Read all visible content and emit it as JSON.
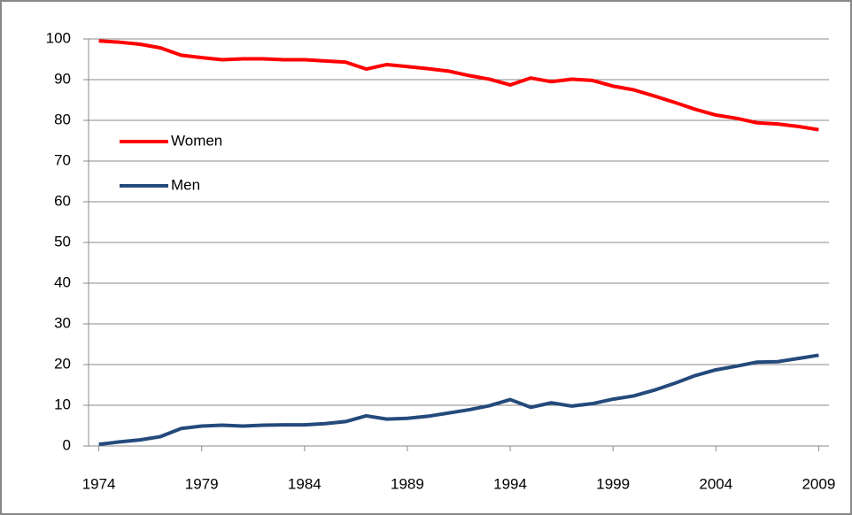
{
  "chart_data": {
    "type": "line",
    "x": [
      1974,
      1975,
      1976,
      1977,
      1978,
      1979,
      1980,
      1981,
      1982,
      1983,
      1984,
      1985,
      1986,
      1987,
      1988,
      1989,
      1990,
      1991,
      1992,
      1993,
      1994,
      1995,
      1996,
      1997,
      1998,
      1999,
      2000,
      2001,
      2002,
      2003,
      2004,
      2005,
      2006,
      2007,
      2008,
      2009
    ],
    "series": [
      {
        "name": "Women",
        "color": "#ff0000",
        "values": [
          99.5,
          99.2,
          98.7,
          97.8,
          96,
          95.4,
          94.9,
          95.1,
          95.1,
          94.9,
          94.9,
          94.6,
          94.3,
          92.6,
          93.7,
          93.2,
          92.7,
          92.1,
          91,
          90.1,
          88.7,
          90.4,
          89.5,
          90.1,
          89.8,
          88.4,
          87.5,
          86,
          84.4,
          82.7,
          81.3,
          80.5,
          79.4,
          79.1,
          78.5,
          77.7
        ]
      },
      {
        "name": "Men",
        "color": "#244a7c",
        "values": [
          0.4,
          1,
          1.5,
          2.3,
          4.3,
          4.9,
          5.1,
          4.9,
          5.1,
          5.2,
          5.2,
          5.5,
          6,
          7.4,
          6.6,
          6.8,
          7.3,
          8.1,
          8.9,
          9.9,
          11.4,
          9.5,
          10.6,
          9.8,
          10.4,
          11.5,
          12.3,
          13.7,
          15.4,
          17.3,
          18.7,
          19.6,
          20.6,
          20.7,
          21.5,
          22.3
        ]
      }
    ],
    "xlim": [
      1973.5,
      2009.5
    ],
    "xticks": [
      1974,
      1979,
      1984,
      1989,
      1994,
      1999,
      2004,
      2009
    ],
    "ylim": [
      0,
      100
    ],
    "yticks": [
      0,
      10,
      20,
      30,
      40,
      50,
      60,
      70,
      80,
      90,
      100
    ],
    "grid": true,
    "legend": "left"
  }
}
